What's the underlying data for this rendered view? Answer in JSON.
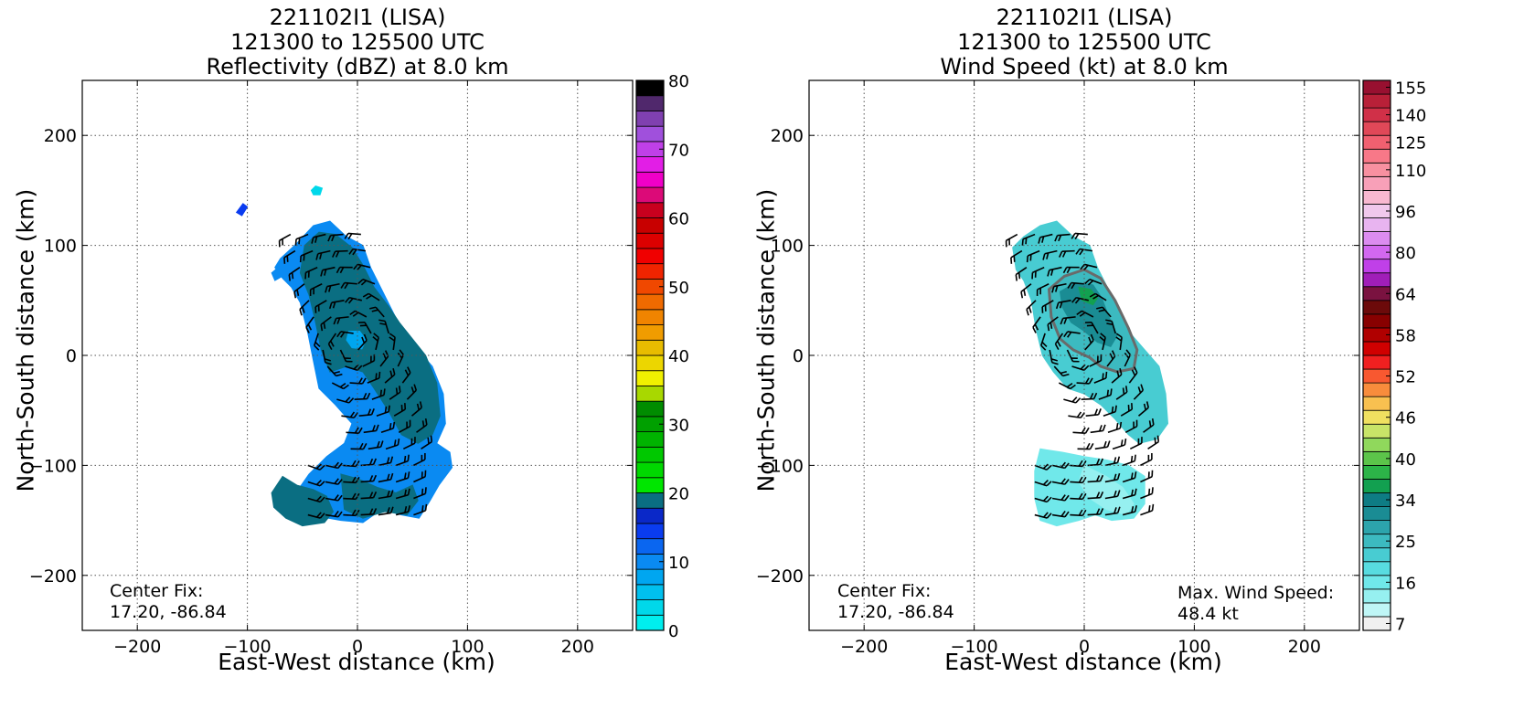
{
  "panels": [
    {
      "id": "reflectivity",
      "title_line1": "221102I1 (LISA)",
      "title_line2": "121300 to 125500 UTC",
      "title_line3": "Reflectivity (dBZ) at 8.0 km",
      "xlabel": "East-West distance (km)",
      "ylabel": "North-South distance (km)",
      "center_fix_label": "Center Fix:",
      "center_fix_value": "17.20, -86.84",
      "colorbar": {
        "min": 0,
        "max": 80,
        "step": 2.5,
        "tick_labels": [
          "0",
          "10",
          "20",
          "30",
          "40",
          "50",
          "60",
          "70",
          "80"
        ],
        "colors": [
          "#00eeee",
          "#00d8ea",
          "#00c0ee",
          "#00a6f0",
          "#0a8af2",
          "#0a66f0",
          "#0a3cf0",
          "#0a28c8",
          "#0a6e82",
          "#00e600",
          "#00d800",
          "#00c800",
          "#00b400",
          "#00a000",
          "#008c00",
          "#a8d800",
          "#f0f000",
          "#ecd600",
          "#e8bc00",
          "#f09c00",
          "#f08400",
          "#f06a00",
          "#f04800",
          "#f02400",
          "#f00000",
          "#dc0000",
          "#c80000",
          "#c8001e",
          "#dc0a78",
          "#f000c8",
          "#e21ee6",
          "#c040e8",
          "#a050dc",
          "#8040b0",
          "#50286c",
          "#000000"
        ]
      }
    },
    {
      "id": "wind-speed",
      "title_line1": "221102I1 (LISA)",
      "title_line2": "121300 to 125500 UTC",
      "title_line3": "Wind Speed (kt) at 8.0 km",
      "xlabel": "East-West distance (km)",
      "ylabel": "North-South distance (km)",
      "center_fix_label": "Center Fix:",
      "center_fix_value": "17.20, -86.84",
      "max_wind_label": "Max. Wind Speed:",
      "max_wind_value": "48.4 kt",
      "colorbar": {
        "tick_labels": [
          "7",
          "16",
          "25",
          "34",
          "40",
          "46",
          "52",
          "58",
          "64",
          "80",
          "96",
          "110",
          "125",
          "140",
          "155"
        ],
        "colors": [
          "#f0f0f0",
          "#bff6f6",
          "#96f0f0",
          "#70e8ea",
          "#58dce0",
          "#48ccd2",
          "#3cbac0",
          "#2ca4ac",
          "#1a8c94",
          "#0e7c84",
          "#12a050",
          "#2cb448",
          "#5cc44a",
          "#90d85c",
          "#c8e468",
          "#f0e060",
          "#f8c050",
          "#f88c3c",
          "#f85830",
          "#f02020",
          "#d00000",
          "#b00000",
          "#880000",
          "#6c0a0a",
          "#7a1240",
          "#a01eb8",
          "#c040e8",
          "#d268f0",
          "#dc8cf0",
          "#e8b4f0",
          "#f0c8ec",
          "#f8b8d0",
          "#f8a0b8",
          "#f890a0",
          "#f87888",
          "#f06070",
          "#e04858",
          "#d03048",
          "#b82038",
          "#981030"
        ]
      }
    }
  ],
  "axes": {
    "xlim": [
      -250,
      250
    ],
    "ylim": [
      -250,
      250
    ],
    "xticks": [
      -200,
      -100,
      0,
      100,
      200
    ],
    "yticks": [
      -200,
      -100,
      0,
      100,
      200
    ],
    "xtick_labels": [
      "−200",
      "−100",
      "0",
      "100",
      "200"
    ],
    "ytick_labels": [
      "−200",
      "−100",
      "0",
      "100",
      "200"
    ],
    "grid": "dotted"
  },
  "chart_data": [
    {
      "type": "heatmap",
      "title": "221102I1 (LISA) 121300 to 125500 UTC Reflectivity (dBZ) at 8.0 km",
      "xlabel": "East-West distance (km)",
      "ylabel": "North-South distance (km)",
      "xlim": [
        -250,
        250
      ],
      "ylim": [
        -250,
        250
      ],
      "units": "dBZ",
      "colorbar_range": [
        0,
        80
      ],
      "field_polygons": [
        {
          "value": 12,
          "points": [
            [
              -70,
              88
            ],
            [
              -55,
              102
            ],
            [
              -40,
              118
            ],
            [
              -25,
              122
            ],
            [
              -10,
              108
            ],
            [
              5,
              100
            ],
            [
              12,
              80
            ],
            [
              22,
              60
            ],
            [
              32,
              40
            ],
            [
              42,
              20
            ],
            [
              55,
              5
            ],
            [
              68,
              -10
            ],
            [
              78,
              -35
            ],
            [
              80,
              -62
            ],
            [
              72,
              -80
            ],
            [
              84,
              -88
            ],
            [
              86,
              -102
            ],
            [
              74,
              -118
            ],
            [
              66,
              -132
            ],
            [
              56,
              -148
            ],
            [
              40,
              -145
            ],
            [
              22,
              -140
            ],
            [
              5,
              -152
            ],
            [
              -15,
              -150
            ],
            [
              -38,
              -146
            ],
            [
              -52,
              -142
            ],
            [
              -58,
              -128
            ],
            [
              -44,
              -108
            ],
            [
              -28,
              -92
            ],
            [
              -12,
              -80
            ],
            [
              -5,
              -62
            ],
            [
              -20,
              -45
            ],
            [
              -35,
              -30
            ],
            [
              -40,
              -5
            ],
            [
              -45,
              20
            ],
            [
              -52,
              48
            ],
            [
              -60,
              62
            ],
            [
              -68,
              70
            ],
            [
              -75,
              80
            ]
          ]
        },
        {
          "value": 22,
          "points": [
            [
              -48,
              100
            ],
            [
              -35,
              112
            ],
            [
              -20,
              110
            ],
            [
              -5,
              98
            ],
            [
              5,
              82
            ],
            [
              15,
              62
            ],
            [
              28,
              45
            ],
            [
              38,
              30
            ],
            [
              50,
              15
            ],
            [
              62,
              0
            ],
            [
              72,
              -25
            ],
            [
              75,
              -55
            ],
            [
              68,
              -72
            ],
            [
              55,
              -80
            ],
            [
              40,
              -72
            ],
            [
              28,
              -50
            ],
            [
              15,
              -30
            ],
            [
              5,
              -15
            ],
            [
              -10,
              -10
            ],
            [
              -25,
              -15
            ],
            [
              -33,
              5
            ],
            [
              -38,
              30
            ],
            [
              -44,
              55
            ],
            [
              -52,
              75
            ]
          ]
        },
        {
          "value": 22,
          "points": [
            [
              -18,
              55
            ],
            [
              0,
              52
            ],
            [
              15,
              45
            ],
            [
              20,
              30
            ],
            [
              14,
              14
            ],
            [
              3,
              5
            ],
            [
              -10,
              6
            ],
            [
              -20,
              18
            ],
            [
              -24,
              34
            ]
          ]
        },
        {
          "value": 9,
          "points": [
            [
              -8,
              22
            ],
            [
              2,
              22
            ],
            [
              8,
              14
            ],
            [
              4,
              6
            ],
            [
              -5,
              7
            ],
            [
              -10,
              14
            ]
          ]
        },
        {
          "value": 22,
          "points": [
            [
              -68,
              -110
            ],
            [
              -55,
              -118
            ],
            [
              -40,
              -122
            ],
            [
              -28,
              -128
            ],
            [
              -22,
              -142
            ],
            [
              -30,
              -152
            ],
            [
              -50,
              -155
            ],
            [
              -65,
              -148
            ],
            [
              -76,
              -138
            ],
            [
              -78,
              -125
            ]
          ]
        },
        {
          "value": 22,
          "points": [
            [
              -15,
              -108
            ],
            [
              0,
              -112
            ],
            [
              18,
              -120
            ],
            [
              35,
              -125
            ],
            [
              50,
              -118
            ],
            [
              55,
              -132
            ],
            [
              45,
              -145
            ],
            [
              25,
              -142
            ],
            [
              5,
              -148
            ],
            [
              -12,
              -140
            ]
          ]
        },
        {
          "value": 2.5,
          "points": [
            [
              -42,
              150
            ],
            [
              -38,
              154
            ],
            [
              -32,
              152
            ],
            [
              -34,
              146
            ],
            [
              -40,
              146
            ]
          ]
        },
        {
          "value": 15,
          "points": [
            [
              -110,
              130
            ],
            [
              -104,
              138
            ],
            [
              -100,
              135
            ],
            [
              -105,
              127
            ]
          ]
        },
        {
          "value": 10,
          "points": [
            [
              -78,
              75
            ],
            [
              -72,
              80
            ],
            [
              -68,
              72
            ],
            [
              -75,
              68
            ]
          ]
        }
      ],
      "wind_barb_rows_km": [
        110,
        95,
        80,
        65,
        50,
        35,
        20,
        5,
        -10,
        -25,
        -40,
        -55,
        -70,
        -85,
        -100,
        -115,
        -130,
        -145
      ]
    },
    {
      "type": "heatmap",
      "title": "221102I1 (LISA) 121300 to 125500 UTC Wind Speed (kt) at 8.0 km",
      "xlabel": "East-West distance (km)",
      "ylabel": "North-South distance (km)",
      "xlim": [
        -250,
        250
      ],
      "ylim": [
        -250,
        250
      ],
      "units": "kt",
      "max_wind_speed_kt": 48.4,
      "field_polygons": [
        {
          "value": 24,
          "points": [
            [
              -65,
              98
            ],
            [
              -55,
              108
            ],
            [
              -40,
              118
            ],
            [
              -25,
              122
            ],
            [
              -10,
              108
            ],
            [
              5,
              100
            ],
            [
              12,
              80
            ],
            [
              22,
              60
            ],
            [
              32,
              40
            ],
            [
              42,
              20
            ],
            [
              55,
              5
            ],
            [
              68,
              -10
            ],
            [
              74,
              -35
            ],
            [
              76,
              -62
            ],
            [
              66,
              -76
            ],
            [
              50,
              -80
            ],
            [
              40,
              -72
            ],
            [
              28,
              -58
            ],
            [
              15,
              -45
            ],
            [
              0,
              -35
            ],
            [
              -15,
              -30
            ],
            [
              -28,
              -15
            ],
            [
              -38,
              0
            ],
            [
              -44,
              25
            ],
            [
              -48,
              50
            ],
            [
              -55,
              68
            ],
            [
              -62,
              78
            ]
          ]
        },
        {
          "value": 31,
          "points": [
            [
              -32,
              60
            ],
            [
              -18,
              72
            ],
            [
              0,
              78
            ],
            [
              15,
              70
            ],
            [
              28,
              50
            ],
            [
              40,
              25
            ],
            [
              48,
              5
            ],
            [
              45,
              -12
            ],
            [
              30,
              -15
            ],
            [
              15,
              -10
            ],
            [
              5,
              -2
            ],
            [
              -10,
              5
            ],
            [
              -22,
              15
            ],
            [
              -30,
              35
            ]
          ]
        },
        {
          "value": 38,
          "points": [
            [
              -22,
              58
            ],
            [
              -8,
              66
            ],
            [
              8,
              64
            ],
            [
              16,
              52
            ],
            [
              22,
              36
            ],
            [
              30,
              18
            ],
            [
              24,
              8
            ],
            [
              12,
              12
            ],
            [
              0,
              22
            ],
            [
              -12,
              30
            ],
            [
              -20,
              44
            ]
          ]
        },
        {
          "value": 45,
          "points": [
            [
              -5,
              62
            ],
            [
              6,
              60
            ],
            [
              12,
              52
            ],
            [
              8,
              46
            ],
            [
              -2,
              50
            ]
          ]
        },
        {
          "value": 18,
          "points": [
            [
              -40,
              -85
            ],
            [
              -20,
              -88
            ],
            [
              0,
              -92
            ],
            [
              20,
              -95
            ],
            [
              40,
              -100
            ],
            [
              55,
              -110
            ],
            [
              55,
              -135
            ],
            [
              45,
              -148
            ],
            [
              25,
              -150
            ],
            [
              10,
              -145
            ],
            [
              -5,
              -150
            ],
            [
              -25,
              -155
            ],
            [
              -40,
              -150
            ],
            [
              -45,
              -130
            ],
            [
              -45,
              -105
            ]
          ]
        },
        {
          "value": 14,
          "points": [
            [
              0,
              -100
            ],
            [
              20,
              -110
            ],
            [
              35,
              -120
            ],
            [
              45,
              -135
            ],
            [
              38,
              -145
            ],
            [
              20,
              -140
            ],
            [
              5,
              -130
            ],
            [
              -5,
              -115
            ]
          ]
        }
      ],
      "wind_barb_rows_km": [
        110,
        95,
        80,
        65,
        50,
        35,
        20,
        5,
        -10,
        -25,
        -40,
        -55,
        -70,
        -85,
        -100,
        -115,
        -130,
        -145
      ]
    }
  ]
}
